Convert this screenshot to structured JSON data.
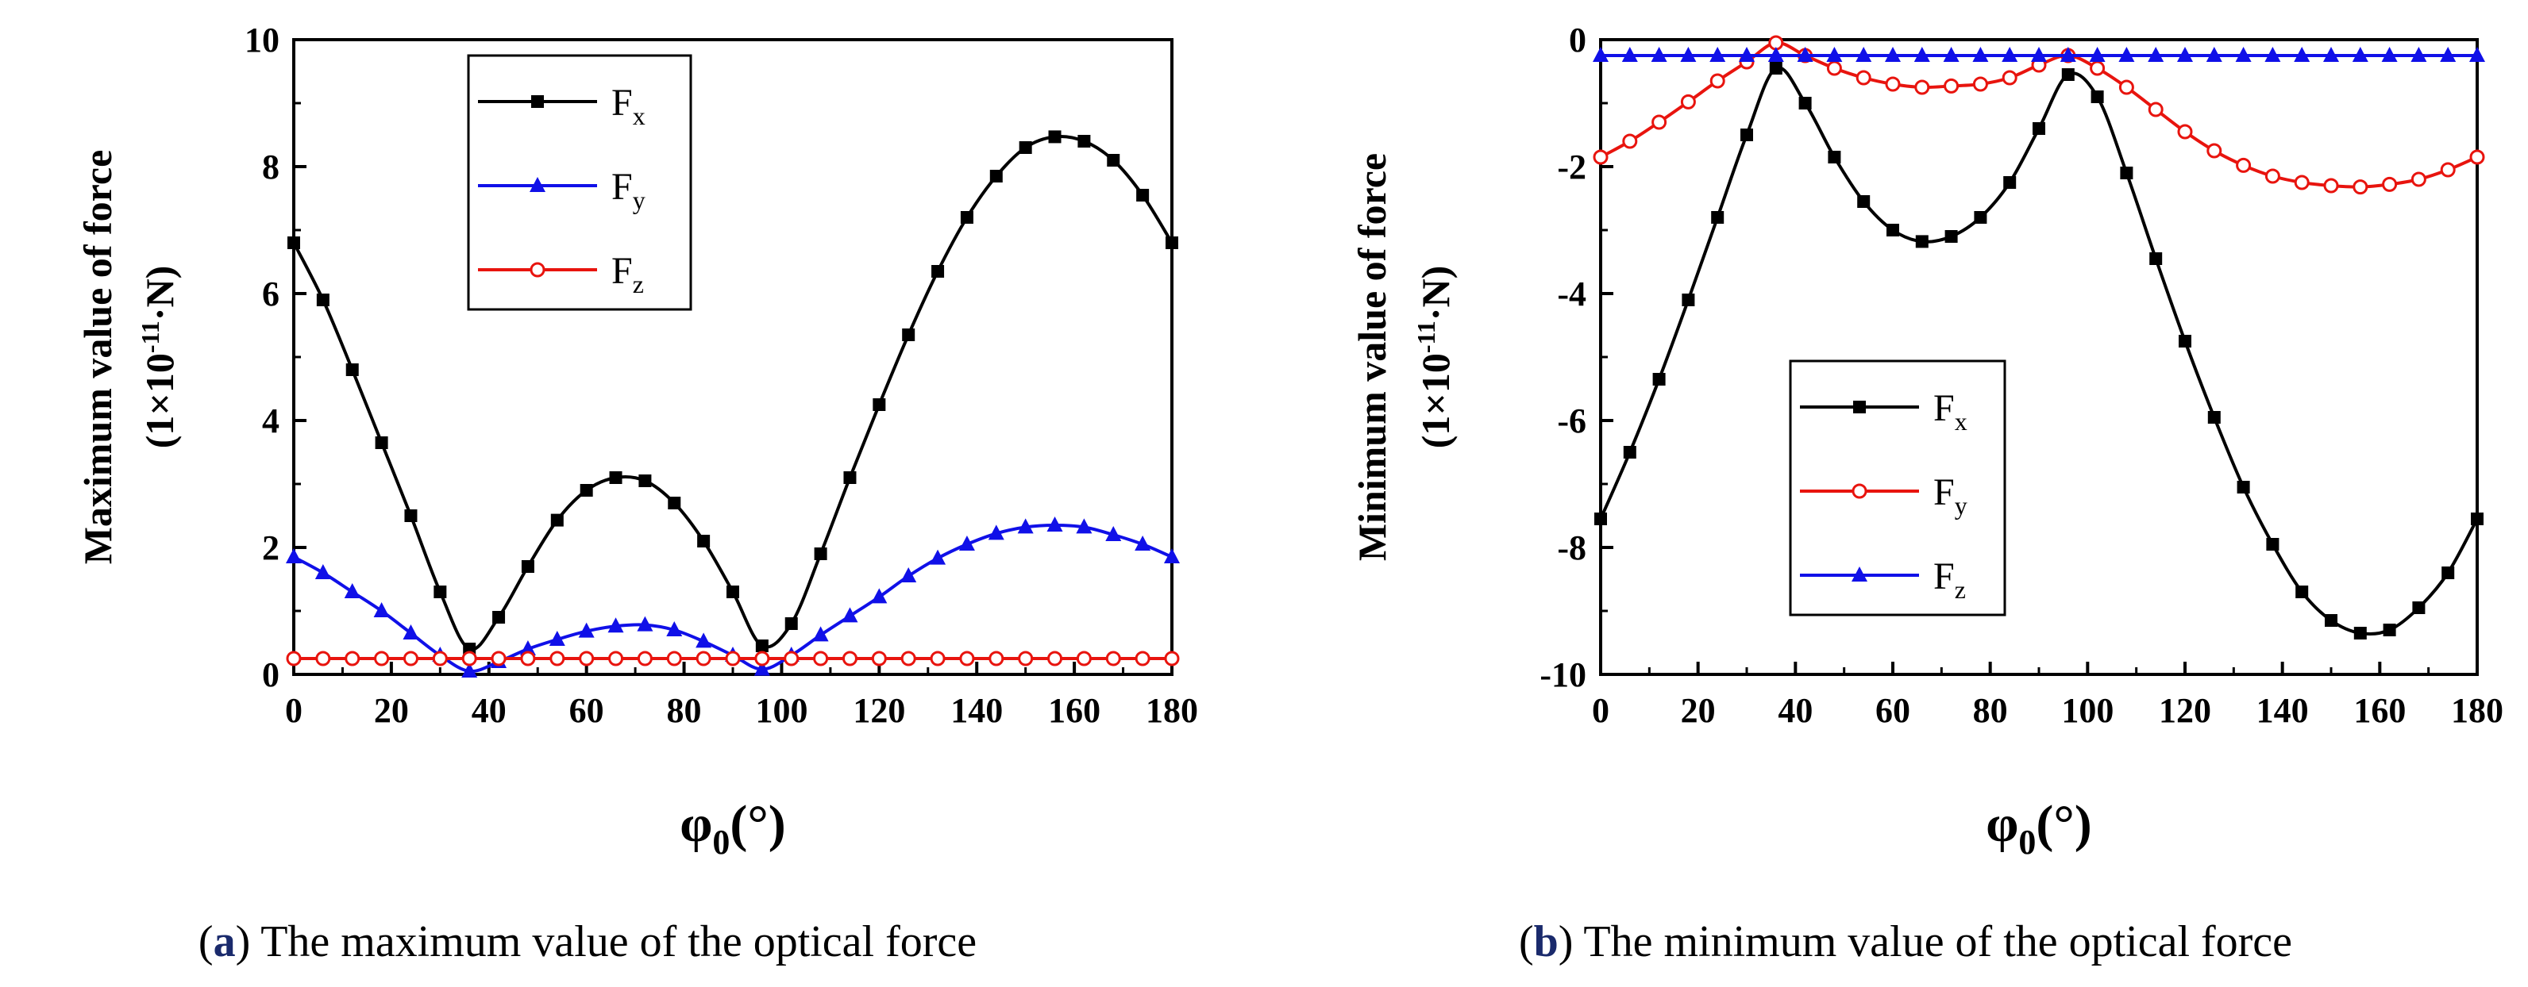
{
  "chart_data": [
    {
      "type": "line",
      "panel_tag": "a",
      "caption_rest": " The maximum value of the optical force",
      "xlabel_symbol": "φ",
      "xlabel_sub": "0",
      "xlabel_unit": "(°)",
      "ylabel_line1": "Maximum value of force",
      "ylabel_line2_pre": "(1×10",
      "ylabel_line2_sup": "-11",
      "ylabel_line2_post": "·N)",
      "xlim": [
        0,
        180
      ],
      "ylim": [
        0,
        10
      ],
      "xticks": [
        "0",
        "20",
        "40",
        "60",
        "80",
        "100",
        "120",
        "140",
        "160",
        "180"
      ],
      "yticks": [
        "0",
        "2",
        "4",
        "6",
        "8",
        "10"
      ],
      "legend_position": "top-center",
      "series": [
        {
          "name": "F",
          "sub": "x",
          "color": "#000000",
          "marker": "square",
          "x": [
            0,
            6,
            12,
            18,
            24,
            30,
            36,
            42,
            48,
            54,
            60,
            66,
            72,
            78,
            84,
            90,
            96,
            102,
            108,
            114,
            120,
            126,
            132,
            138,
            144,
            150,
            156,
            162,
            168,
            174,
            180
          ],
          "values": [
            6.8,
            5.9,
            4.8,
            3.65,
            2.5,
            1.3,
            0.4,
            0.9,
            1.7,
            2.43,
            2.9,
            3.1,
            3.05,
            2.7,
            2.1,
            1.3,
            0.45,
            0.8,
            1.9,
            3.1,
            4.25,
            5.35,
            6.35,
            7.2,
            7.85,
            8.3,
            8.47,
            8.4,
            8.1,
            7.55,
            6.8
          ]
        },
        {
          "name": "F",
          "sub": "y",
          "color": "#1010e8",
          "marker": "triangle",
          "x": [
            0,
            6,
            12,
            18,
            24,
            30,
            36,
            42,
            48,
            54,
            60,
            66,
            72,
            78,
            84,
            90,
            96,
            102,
            108,
            114,
            120,
            126,
            132,
            138,
            144,
            150,
            156,
            162,
            168,
            174,
            180
          ],
          "values": [
            1.85,
            1.6,
            1.3,
            1.0,
            0.65,
            0.3,
            0.05,
            0.2,
            0.4,
            0.55,
            0.68,
            0.76,
            0.78,
            0.7,
            0.52,
            0.3,
            0.08,
            0.3,
            0.62,
            0.92,
            1.22,
            1.55,
            1.83,
            2.05,
            2.22,
            2.32,
            2.35,
            2.32,
            2.2,
            2.05,
            1.85
          ]
        },
        {
          "name": "F",
          "sub": "z",
          "color": "#e8140e",
          "marker": "circle",
          "x": [
            0,
            6,
            12,
            18,
            24,
            30,
            36,
            42,
            48,
            54,
            60,
            66,
            72,
            78,
            84,
            90,
            96,
            102,
            108,
            114,
            120,
            126,
            132,
            138,
            144,
            150,
            156,
            162,
            168,
            174,
            180
          ],
          "values": [
            0.25,
            0.25,
            0.25,
            0.25,
            0.25,
            0.25,
            0.25,
            0.25,
            0.25,
            0.25,
            0.25,
            0.25,
            0.25,
            0.25,
            0.25,
            0.25,
            0.25,
            0.25,
            0.25,
            0.25,
            0.25,
            0.25,
            0.25,
            0.25,
            0.25,
            0.25,
            0.25,
            0.25,
            0.25,
            0.25,
            0.25
          ]
        }
      ]
    },
    {
      "type": "line",
      "panel_tag": "b",
      "caption_rest": " The minimum value of the optical force",
      "xlabel_symbol": "φ",
      "xlabel_sub": "0",
      "xlabel_unit": "(°)",
      "ylabel_line1": "Minimum value of force",
      "ylabel_line2_pre": "(1×10",
      "ylabel_line2_sup": "-11",
      "ylabel_line2_post": "·N)",
      "xlim": [
        0,
        180
      ],
      "ylim": [
        -10,
        0
      ],
      "xticks": [
        "0",
        "20",
        "40",
        "60",
        "80",
        "100",
        "120",
        "140",
        "160",
        "180"
      ],
      "yticks": [
        "-10",
        "-8",
        "-6",
        "-4",
        "-2",
        "0"
      ],
      "legend_position": "center-left",
      "series": [
        {
          "name": "F",
          "sub": "x",
          "color": "#000000",
          "marker": "square",
          "x": [
            0,
            6,
            12,
            18,
            24,
            30,
            36,
            42,
            48,
            54,
            60,
            66,
            72,
            78,
            84,
            90,
            96,
            102,
            108,
            114,
            120,
            126,
            132,
            138,
            144,
            150,
            156,
            162,
            168,
            174,
            180
          ],
          "values": [
            -7.55,
            -6.5,
            -5.35,
            -4.1,
            -2.8,
            -1.5,
            -0.45,
            -1.0,
            -1.85,
            -2.55,
            -3.0,
            -3.18,
            -3.1,
            -2.8,
            -2.25,
            -1.4,
            -0.55,
            -0.9,
            -2.1,
            -3.45,
            -4.75,
            -5.95,
            -7.05,
            -7.95,
            -8.7,
            -9.15,
            -9.35,
            -9.3,
            -8.95,
            -8.4,
            -7.55
          ]
        },
        {
          "name": "F",
          "sub": "y",
          "color": "#e8140e",
          "marker": "circle",
          "x": [
            0,
            6,
            12,
            18,
            24,
            30,
            36,
            42,
            48,
            54,
            60,
            66,
            72,
            78,
            84,
            90,
            96,
            102,
            108,
            114,
            120,
            126,
            132,
            138,
            144,
            150,
            156,
            162,
            168,
            174,
            180
          ],
          "values": [
            -1.85,
            -1.6,
            -1.3,
            -0.98,
            -0.65,
            -0.35,
            -0.05,
            -0.25,
            -0.45,
            -0.6,
            -0.7,
            -0.75,
            -0.73,
            -0.7,
            -0.6,
            -0.4,
            -0.25,
            -0.45,
            -0.75,
            -1.1,
            -1.45,
            -1.75,
            -1.98,
            -2.15,
            -2.25,
            -2.3,
            -2.32,
            -2.28,
            -2.2,
            -2.05,
            -1.85
          ]
        },
        {
          "name": "F",
          "sub": "z",
          "color": "#1010e8",
          "marker": "triangle",
          "x": [
            0,
            6,
            12,
            18,
            24,
            30,
            36,
            42,
            48,
            54,
            60,
            66,
            72,
            78,
            84,
            90,
            96,
            102,
            108,
            114,
            120,
            126,
            132,
            138,
            144,
            150,
            156,
            162,
            168,
            174,
            180
          ],
          "values": [
            -0.25,
            -0.25,
            -0.25,
            -0.25,
            -0.25,
            -0.25,
            -0.25,
            -0.25,
            -0.25,
            -0.25,
            -0.25,
            -0.25,
            -0.25,
            -0.25,
            -0.25,
            -0.25,
            -0.25,
            -0.25,
            -0.25,
            -0.25,
            -0.25,
            -0.25,
            -0.25,
            -0.25,
            -0.25,
            -0.25,
            -0.25,
            -0.25,
            -0.25,
            -0.25,
            -0.25
          ]
        }
      ]
    }
  ]
}
